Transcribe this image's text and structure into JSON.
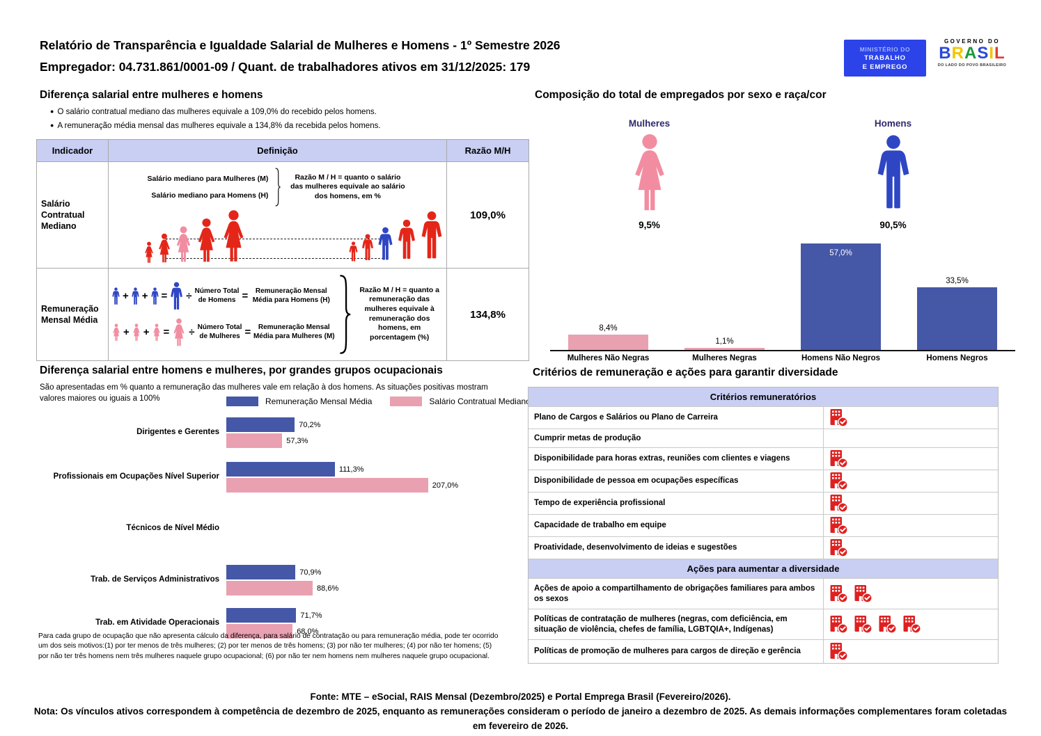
{
  "page": {
    "title_line1": "Relatório de Transparência e Igualdade Salarial de Mulheres e Homens - 1º Semestre 2026",
    "title_line2": "Empregador: 04.731.861/0001-09 / Quant. de trabalhadores ativos em 31/12/2025: 179"
  },
  "logos": {
    "mte": {
      "l1": "MINISTÉRIO DO",
      "l2": "TRABALHO",
      "l3": "E EMPREGO"
    },
    "gov": {
      "top": "GOVERNO DO",
      "brand": "BRASIL",
      "slogan": "DO LADO DO POVO BRASILEIRO"
    }
  },
  "salary": {
    "heading": "Diferença salarial entre mulheres e homens",
    "bullet1": "O salário contratual mediano das mulheres equivale a 109,0% do recebido pelos homens.",
    "bullet2": "A remuneração média mensal das mulheres equivale a 134,8% da recebida pelos homens.",
    "bullet_glyph": "●",
    "table_headers": {
      "indicator": "Indicador",
      "definition": "Definição",
      "ratio": "Razão M/H"
    },
    "row1": {
      "indicator": "Salário Contratual Mediano",
      "line1": "Salário mediano para Mulheres (M)",
      "line2": "Salário mediano para Homens (H)",
      "note": "Razão M / H = quanto o salário das mulheres equivale ao salário dos homens, em %",
      "ratio": "109,0%"
    },
    "row2": {
      "indicator": "Remuneração Mensal Média",
      "men_divisor": "Número Total de Homens",
      "men_result": "Remuneração Mensal Média para Homens (H)",
      "women_divisor": "Número Total de Mulheres",
      "women_result": "Remuneração Mensal Média para Mulheres (M)",
      "note": "Razão M / H = quanto a remuneração das mulheres equivale à remuneração dos homens, em porcentagem (%)",
      "ratio": "134,8%"
    },
    "sym": {
      "plus": "+",
      "equals": "=",
      "divide": "÷"
    }
  },
  "composition": {
    "heading": "Composição do total de empregados por sexo e raça/cor",
    "female": {
      "label": "Mulheres",
      "pct": "9,5%"
    },
    "male": {
      "label": "Homens",
      "pct": "90,5%"
    }
  },
  "occupational": {
    "heading": "Diferença salarial entre homens e mulheres, por grandes grupos ocupacionais",
    "subtitle": "São apresentadas em % quanto a remuneração das mulheres vale em relação à dos homens. As situações positivas mostram valores maiores ou iguais a 100%",
    "footnote": "Para cada grupo de ocupação que não apresenta cálculo da diferença, para salário de contratação ou para remuneração média, pode ter ocorrido um dos seis motivos:(1) por ter menos de três mulheres; (2) por ter menos de três homens; (3) por não ter mulheres; (4) por não ter homens; (5) por não ter três homens nem três mulheres naquele grupo ocupacional; (6) por não ter nem homens nem mulheres naquele grupo ocupacional."
  },
  "criteria": {
    "heading": "Critérios de remuneração e ações para garantir diversidade",
    "sec1": {
      "header": "Critérios remuneratórios",
      "rows": [
        {
          "label": "Plano de Cargos e Salários ou Plano de Carreira",
          "icons": 1
        },
        {
          "label": "Cumprir metas de produção",
          "icons": 0
        },
        {
          "label": "Disponibilidade para horas extras, reuniões com clientes e viagens",
          "icons": 1
        },
        {
          "label": "Disponibilidade de pessoa em ocupações específicas",
          "icons": 1
        },
        {
          "label": "Tempo de experiência profissional",
          "icons": 1
        },
        {
          "label": "Capacidade de trabalho em equipe",
          "icons": 1
        },
        {
          "label": "Proatividade, desenvolvimento de ideias e sugestões",
          "icons": 1
        }
      ]
    },
    "sec2": {
      "header": "Ações para aumentar a diversidade",
      "rows": [
        {
          "label": "Ações de apoio a compartilhamento de obrigações familiares para ambos os sexos",
          "icons": 2
        },
        {
          "label": "Políticas de contratação de mulheres (negras, com deficiência, em situação de violência, chefes de família, LGBTQIA+, Indígenas)",
          "icons": 4
        },
        {
          "label": "Políticas de promoção de mulheres para cargos de direção e gerência",
          "icons": 1
        }
      ]
    }
  },
  "footer": {
    "fonte": "Fonte: MTE – eSocial, RAIS Mensal (Dezembro/2025) e Portal Emprega Brasil (Fevereiro/2026).",
    "nota": "Nota: Os vínculos ativos correspondem à competência de dezembro de 2025, enquanto as remunerações consideram o período de janeiro a dezembro de 2025. As demais informações complementares foram coletadas em fevereiro de 2026."
  },
  "icons": {
    "criteria_marker": "building-check-icon",
    "female": "female-person-icon",
    "male": "male-person-icon"
  },
  "colors": {
    "periwinkle_header": "#C9CEF3",
    "bar_blue": "#4557A7",
    "bar_pink": "#E9A0B1",
    "figure_red": "#E42619",
    "figure_pink": "#F28DA1",
    "figure_blue": "#2F46C4",
    "label_navy": "#2E2A6E",
    "icon_red": "#DF2020"
  },
  "chart_data": [
    {
      "id": "composition-by-sex-race",
      "type": "bar",
      "title": "Composição do total de empregados por sexo e raça/cor",
      "categories": [
        "Mulheres Não Negras",
        "Mulheres Negras",
        "Homens Não Negros",
        "Homens Negros"
      ],
      "values": [
        8.4,
        1.1,
        57.0,
        33.5
      ],
      "labels": [
        "8,4%",
        "1,1%",
        "57,0%",
        "33,5%"
      ],
      "colors": [
        "#E9A0B1",
        "#E9A0B1",
        "#4557A7",
        "#4557A7"
      ],
      "female_total_pct": 9.5,
      "male_total_pct": 90.5,
      "ylim": [
        0,
        60
      ],
      "grid": false,
      "legend": "none"
    },
    {
      "id": "salary-diff-by-occupational-group",
      "type": "bar",
      "orientation": "horizontal",
      "title": "Diferença salarial entre homens e mulheres, por grandes grupos ocupacionais",
      "categories": [
        "Dirigentes e Gerentes",
        "Profissionais em Ocupações Nível Superior",
        "Técnicos de Nível Médio",
        "Trab. de Serviços Administrativos",
        "Trab. em Atividade Operacionais"
      ],
      "series": [
        {
          "name": "Remuneração Mensal Média",
          "color": "#4557A7",
          "values": [
            70.2,
            111.3,
            null,
            70.9,
            71.7
          ],
          "labels": [
            "70,2%",
            "111,3%",
            null,
            "70,9%",
            "71,7%"
          ]
        },
        {
          "name": "Salário Contratual Mediano",
          "color": "#E9A0B1",
          "values": [
            57.3,
            207.0,
            null,
            88.6,
            68.0
          ],
          "labels": [
            "57,3%",
            "207,0%",
            null,
            "88,6%",
            "68,0%"
          ]
        }
      ],
      "xlim": [
        0,
        220
      ],
      "grid": false,
      "legend_position": "top"
    }
  ]
}
